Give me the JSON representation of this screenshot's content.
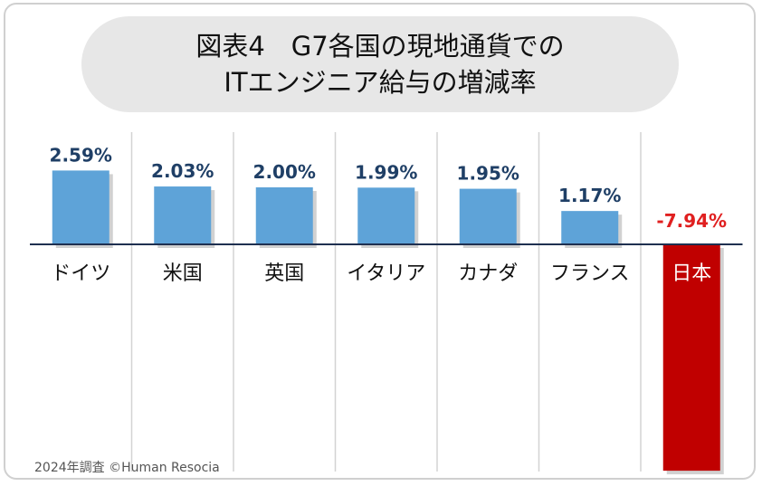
{
  "title": {
    "line1": "図表4　G7各国の現地通貨での",
    "line2": "ITエンジニア給与の増減率"
  },
  "source": "2024年調査 ©Human Resocia",
  "chart_data": {
    "type": "bar",
    "categories": [
      "ドイツ",
      "米国",
      "英国",
      "イタリア",
      "カナダ",
      "フランス",
      "日本"
    ],
    "values": [
      2.59,
      2.03,
      2.0,
      1.99,
      1.95,
      1.17,
      -7.94
    ],
    "value_labels": [
      "2.59%",
      "2.03%",
      "2.00%",
      "1.99%",
      "1.95%",
      "1.17%",
      "-7.94%"
    ],
    "unit": "%",
    "grid": false,
    "colors": {
      "positive": "#5ea3d8",
      "negative": "#c00000",
      "positive_label": "#1f3f66",
      "negative_label": "#e02020",
      "highlight_text": "#ffffff",
      "category_text": "#111111",
      "axis": "#1f3050",
      "divider": "#d3d3d3"
    },
    "highlight_category": "日本"
  }
}
